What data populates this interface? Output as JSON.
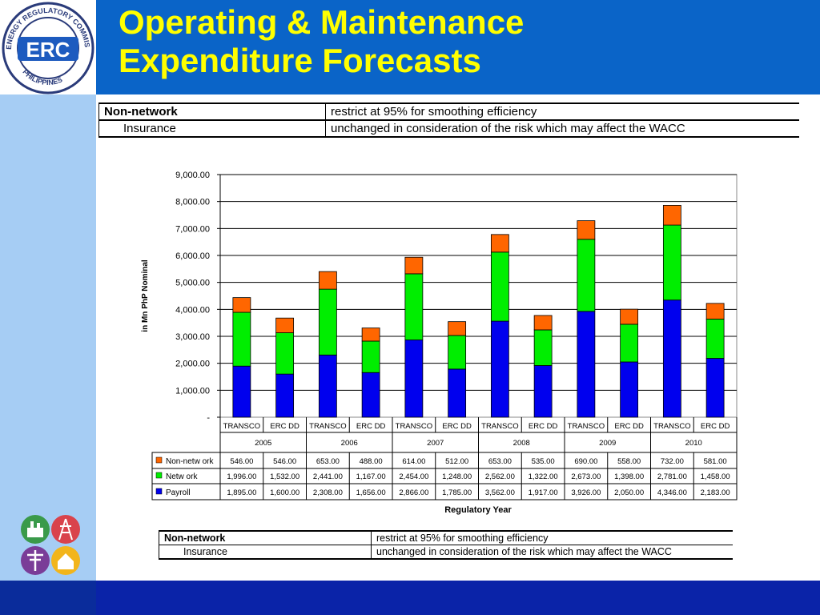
{
  "title_line1": "Operating & Maintenance",
  "title_line2": "Expenditure Forecasts",
  "logo": {
    "text": "ERC",
    "ring_top": "ENERGY REGULATORY COMMISSION",
    "ring_bottom": "PHILIPPINES"
  },
  "note_table": {
    "row1": {
      "label": "Non-network",
      "text": "restrict at 95% for smoothing efficiency"
    },
    "row2": {
      "label": "Insurance",
      "text": "unchanged in consideration of the risk which may affect the WACC"
    }
  },
  "colors": {
    "header": "#0a64c8",
    "title": "#ffff00",
    "payroll": "#0000ee",
    "network": "#00ee00",
    "nonnetwork": "#ff6600"
  },
  "chart_data": {
    "type": "bar",
    "stacked": true,
    "xlabel": "Regulatory Year",
    "ylabel": "in Mn PhP Nominal",
    "ylim": [
      0,
      9000
    ],
    "yticks": [
      "-",
      "1,000.00",
      "2,000.00",
      "3,000.00",
      "4,000.00",
      "5,000.00",
      "6,000.00",
      "7,000.00",
      "8,000.00",
      "9,000.00"
    ],
    "grid": true,
    "categories": [
      "TRANSCO",
      "ERC DD",
      "TRANSCO",
      "ERC DD",
      "TRANSCO",
      "ERC DD",
      "TRANSCO",
      "ERC DD",
      "TRANSCO",
      "ERC DD",
      "TRANSCO",
      "ERC DD"
    ],
    "groups": [
      "2005",
      "2006",
      "2007",
      "2008",
      "2009",
      "2010"
    ],
    "series": [
      {
        "name": "Payroll",
        "values": [
          1895,
          1600,
          2308,
          1656,
          2866,
          1785,
          3562,
          1917,
          3926,
          2050,
          4346,
          2183
        ],
        "labels": [
          "1,895.00",
          "1,600.00",
          "2,308.00",
          "1,656.00",
          "2,866.00",
          "1,785.00",
          "3,562.00",
          "1,917.00",
          "3,926.00",
          "2,050.00",
          "4,346.00",
          "2,183.00"
        ]
      },
      {
        "name": "Netw ork",
        "values": [
          1996,
          1532,
          2441,
          1167,
          2454,
          1248,
          2562,
          1322,
          2673,
          1398,
          2781,
          1458
        ],
        "labels": [
          "1,996.00",
          "1,532.00",
          "2,441.00",
          "1,167.00",
          "2,454.00",
          "1,248.00",
          "2,562.00",
          "1,322.00",
          "2,673.00",
          "1,398.00",
          "2,781.00",
          "1,458.00"
        ]
      },
      {
        "name": "Non-netw ork",
        "values": [
          546,
          546,
          653,
          488,
          614,
          512,
          653,
          535,
          690,
          558,
          732,
          581
        ],
        "labels": [
          "546.00",
          "546.00",
          "653.00",
          "488.00",
          "614.00",
          "512.00",
          "653.00",
          "535.00",
          "690.00",
          "558.00",
          "732.00",
          "581.00"
        ]
      }
    ],
    "table_order": [
      "Non-netw ork",
      "Netw ork",
      "Payroll"
    ]
  }
}
